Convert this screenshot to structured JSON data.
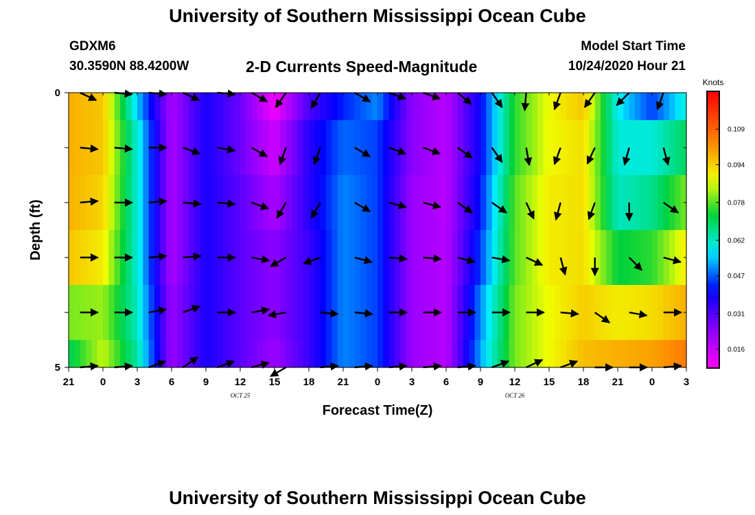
{
  "page": {
    "title_top": "University of Southern Mississippi Ocean Cube",
    "title_bottom": "University of Southern Mississippi Ocean Cube",
    "station": "GDXM6",
    "location": "30.3590N 88.4200W",
    "plot_title": "2-D Currents Speed-Magnitude",
    "model_label": "Model Start Time",
    "model_time": "10/24/2020 Hour 21"
  },
  "chart_data": {
    "type": "heatmap",
    "title": "2-D Currents Speed-Magnitude",
    "xlabel": "Forecast Time(Z)",
    "ylabel": "Depth (ft)",
    "x_hours": [
      0,
      3,
      6,
      9,
      12,
      15,
      18,
      21,
      24,
      27,
      30,
      33,
      36,
      39,
      42,
      45,
      48,
      51,
      54
    ],
    "x_tick_labels": [
      "21",
      "0",
      "3",
      "6",
      "9",
      "12",
      "15",
      "18",
      "21",
      "0",
      "3",
      "6",
      "9",
      "12",
      "15",
      "18",
      "21",
      "0",
      "3"
    ],
    "date_labels": [
      {
        "hour": 15,
        "text": "OCT 25"
      },
      {
        "hour": 39,
        "text": "OCT 26"
      }
    ],
    "xlim_hours": [
      0,
      54
    ],
    "y_ticks": [
      {
        "value": 0,
        "label": "0"
      },
      {
        "value": 5,
        "label": "5"
      }
    ],
    "ylim": [
      0,
      5
    ],
    "depths": [
      0,
      1,
      2,
      3,
      4,
      5
    ],
    "colorbar": {
      "label": "Knots",
      "min": 0.008,
      "max": 0.125,
      "ticks": [
        0.016,
        0.031,
        0.047,
        0.062,
        0.078,
        0.094,
        0.109
      ],
      "tick_labels": [
        "0.016",
        "0.031",
        "0.047",
        "0.062",
        "0.078",
        "0.094",
        "0.109"
      ]
    },
    "speed_grid_hours": [
      0,
      3,
      6,
      9,
      12,
      15,
      18,
      21,
      24,
      27,
      30,
      33,
      36,
      39,
      42,
      45,
      48,
      51,
      54
    ],
    "speed_grid": [
      [
        0.098,
        0.095,
        0.055,
        0.02,
        0.038,
        0.028,
        0.01,
        0.032,
        0.043,
        0.05,
        0.024,
        0.018,
        0.04,
        0.075,
        0.088,
        0.095,
        0.058,
        0.045,
        0.06
      ],
      [
        0.098,
        0.095,
        0.06,
        0.02,
        0.038,
        0.028,
        0.015,
        0.036,
        0.048,
        0.045,
        0.024,
        0.018,
        0.04,
        0.075,
        0.088,
        0.092,
        0.06,
        0.06,
        0.07
      ],
      [
        0.098,
        0.093,
        0.06,
        0.02,
        0.038,
        0.03,
        0.02,
        0.036,
        0.05,
        0.045,
        0.022,
        0.018,
        0.042,
        0.078,
        0.09,
        0.092,
        0.062,
        0.066,
        0.08
      ],
      [
        0.095,
        0.09,
        0.06,
        0.02,
        0.038,
        0.03,
        0.024,
        0.034,
        0.05,
        0.045,
        0.022,
        0.018,
        0.045,
        0.078,
        0.09,
        0.092,
        0.072,
        0.075,
        0.09
      ],
      [
        0.08,
        0.082,
        0.062,
        0.022,
        0.038,
        0.03,
        0.024,
        0.034,
        0.05,
        0.045,
        0.022,
        0.018,
        0.05,
        0.08,
        0.088,
        0.094,
        0.09,
        0.092,
        0.098
      ],
      [
        0.07,
        0.085,
        0.064,
        0.022,
        0.038,
        0.03,
        0.022,
        0.034,
        0.05,
        0.045,
        0.022,
        0.018,
        0.052,
        0.08,
        0.088,
        0.096,
        0.098,
        0.1,
        0.105
      ]
    ],
    "vector_hours": [
      1,
      4,
      7,
      10,
      13,
      16,
      19,
      22,
      25,
      28,
      31,
      34,
      37,
      40,
      43,
      46,
      49,
      52
    ],
    "vector_depths": [
      0,
      1,
      2,
      3,
      4,
      5
    ],
    "vector_angles_deg": [
      [
        25,
        5,
        5,
        25,
        5,
        30,
        125,
        120,
        30,
        20,
        20,
        40,
        55,
        95,
        110,
        125,
        135,
        110
      ],
      [
        5,
        5,
        0,
        20,
        10,
        30,
        110,
        110,
        30,
        20,
        20,
        35,
        55,
        80,
        110,
        115,
        105,
        75
      ],
      [
        -5,
        0,
        -5,
        5,
        5,
        20,
        120,
        120,
        30,
        15,
        15,
        35,
        35,
        65,
        105,
        110,
        90,
        35
      ],
      [
        0,
        0,
        -5,
        -5,
        0,
        10,
        150,
        160,
        15,
        5,
        5,
        15,
        10,
        25,
        75,
        90,
        45,
        15
      ],
      [
        0,
        0,
        -10,
        -20,
        0,
        -10,
        170,
        5,
        5,
        0,
        0,
        0,
        0,
        0,
        5,
        35,
        10,
        0
      ],
      [
        -5,
        -5,
        -20,
        -35,
        -20,
        -15,
        150,
        -5,
        -5,
        -5,
        -5,
        -5,
        -20,
        -25,
        -20,
        0,
        0,
        -5
      ]
    ]
  }
}
